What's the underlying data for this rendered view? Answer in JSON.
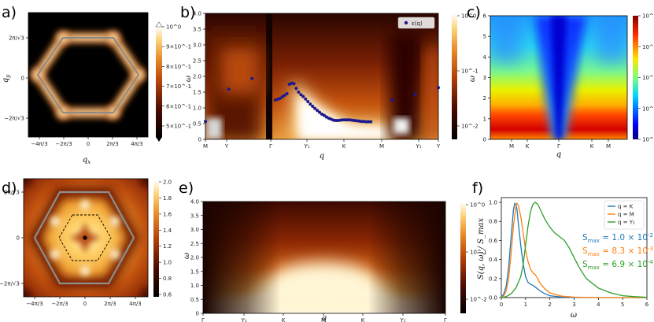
{
  "figure": {
    "panel_labels": [
      "a)",
      "b)",
      "c)",
      "d)",
      "e)",
      "f)"
    ]
  },
  "chart_data": [
    {
      "id": "a",
      "type": "heatmap",
      "description_label": "structure factor on (qx, qy) plane",
      "xlabel": "q_x",
      "ylabel": "q_y",
      "xticks": [
        "−4π/3",
        "−2π/3",
        "0",
        "2π/3",
        "4π/3"
      ],
      "yticks": [
        "2π/√3",
        "0",
        "−2π/√3"
      ],
      "colorbar": {
        "scale": "log",
        "ticks": [
          "10^0",
          "9×10^-1",
          "8×10^-1",
          "7×10^-1",
          "6×10^-1",
          "5×10^-1"
        ],
        "range": [
          0.45,
          1.0
        ],
        "colors": [
          "#000000",
          "#3b0a02",
          "#8a2a06",
          "#d15a12",
          "#f3a53a",
          "#ffe29a",
          "#ffffff"
        ]
      }
    },
    {
      "id": "b",
      "type": "heatmap",
      "xlabel": "q",
      "ylabel": "ω",
      "xticks": [
        "M",
        "Y",
        "Γ",
        "Y₁",
        "K",
        "M",
        "Y₁",
        "Y"
      ],
      "yticks": [
        "0",
        "0.5",
        "1.0",
        "1.5",
        "2.0",
        "2.5",
        "3.0",
        "3.5",
        "4.0"
      ],
      "ylim": [
        0,
        4
      ],
      "legend": "ε(q)",
      "colorbar": {
        "scale": "log",
        "ticks": [
          "10^0",
          "10^-1",
          "10^-2"
        ],
        "range": [
          0.003,
          1
        ]
      },
      "scatter": {
        "name": "ε(q)",
        "x": [
          0.0,
          1.0,
          2.0,
          3.0,
          3.1,
          3.2,
          3.3,
          3.4,
          3.5,
          3.6,
          3.7,
          3.8,
          3.9,
          4.0,
          4.1,
          4.2,
          4.3,
          4.4,
          4.5,
          4.6,
          4.7,
          4.8,
          4.9,
          5.0,
          5.1,
          5.2,
          5.3,
          5.4,
          5.5,
          5.6,
          5.7,
          5.8,
          5.9,
          6.0,
          6.1,
          6.2,
          6.3,
          6.4,
          6.5,
          6.6,
          6.7,
          6.8,
          6.9,
          7.0,
          7.1,
          8.0,
          9.0,
          10.0
        ],
        "y": [
          0.57,
          1.59,
          1.93,
          1.25,
          1.27,
          1.3,
          1.35,
          1.4,
          1.45,
          1.75,
          1.78,
          1.77,
          1.62,
          1.5,
          1.42,
          1.36,
          1.28,
          1.2,
          1.12,
          1.05,
          0.98,
          0.92,
          0.86,
          0.8,
          0.76,
          0.71,
          0.67,
          0.64,
          0.61,
          0.6,
          0.6,
          0.61,
          0.62,
          0.62,
          0.62,
          0.62,
          0.61,
          0.6,
          0.59,
          0.58,
          0.57,
          0.57,
          0.56,
          0.56,
          0.56,
          1.25,
          1.43,
          1.64
        ]
      }
    },
    {
      "id": "c",
      "type": "heatmap",
      "xlabel": "q",
      "ylabel": "ω",
      "xticks": [
        "M",
        "K",
        "Γ",
        "K",
        "M"
      ],
      "yticks": [
        "0",
        "1",
        "2",
        "3",
        "4",
        "5",
        "6"
      ],
      "ylim": [
        0,
        6
      ],
      "colorbar": {
        "scale": "log",
        "ticks": [
          "10^0",
          "10^-1",
          "10^-2",
          "10^-3",
          "10^-4"
        ],
        "range": [
          0.0001,
          1
        ]
      }
    },
    {
      "id": "d",
      "type": "heatmap",
      "xticks": [
        "−4π/3",
        "−2π/3",
        "0",
        "2π/3",
        "4π/3"
      ],
      "yticks": [
        "2π/√3",
        "0",
        "−2π/√3"
      ],
      "colorbar": {
        "scale": "linear",
        "ticks": [
          "2.0",
          "1.8",
          "1.6",
          "1.4",
          "1.2",
          "1.0",
          "0.8",
          "0.6"
        ],
        "range": [
          0.55,
          2.0
        ]
      }
    },
    {
      "id": "e",
      "type": "heatmap",
      "xlabel": "q",
      "ylabel": "ω",
      "xticks": [
        "Γ",
        "Y₁",
        "K",
        "M",
        "K",
        "Y₁",
        "Γ"
      ],
      "yticks": [
        "0",
        "0.5",
        "1.0",
        "1.5",
        "2.0",
        "2.5",
        "3.0",
        "3.5",
        "4.0"
      ],
      "ylim": [
        0,
        4
      ],
      "colorbar": {
        "scale": "log",
        "ticks": [
          "10^0",
          "10^-1",
          "10^-2"
        ],
        "range": [
          0.003,
          1
        ]
      }
    },
    {
      "id": "f",
      "type": "line",
      "xlabel": "ω",
      "ylabel": "S(q, ω) / S_max",
      "xlim": [
        0,
        6
      ],
      "ylim": [
        0,
        1.05
      ],
      "xticks": [
        "0",
        "1",
        "2",
        "3",
        "4",
        "5",
        "6"
      ],
      "yticks": [
        "0.0",
        "0.2",
        "0.4",
        "0.6",
        "0.8",
        "1.0"
      ],
      "series": [
        {
          "name": "q = K",
          "color": "#1f77b4",
          "smax_label": "S",
          "smax_sub": "max",
          "smax_value": " = 1.0 × 10",
          "smax_exp": "-2",
          "x": [
            0,
            0.1,
            0.2,
            0.3,
            0.4,
            0.5,
            0.55,
            0.6,
            0.65,
            0.7,
            0.8,
            0.9,
            1.0,
            1.1,
            1.2,
            1.3,
            1.4,
            1.6,
            1.8,
            2.0,
            2.5,
            3.0,
            4.0,
            6.0
          ],
          "y": [
            0,
            0.04,
            0.12,
            0.32,
            0.62,
            0.92,
            0.99,
            0.98,
            0.92,
            0.78,
            0.55,
            0.35,
            0.22,
            0.16,
            0.14,
            0.13,
            0.11,
            0.07,
            0.04,
            0.02,
            0.005,
            0.002,
            0,
            0
          ]
        },
        {
          "name": "q = M",
          "color": "#ff7f0e",
          "smax_label": "S",
          "smax_sub": "max",
          "smax_value": " = 8.3 × 10",
          "smax_exp": "-3",
          "x": [
            0,
            0.1,
            0.2,
            0.3,
            0.4,
            0.5,
            0.6,
            0.65,
            0.7,
            0.8,
            0.9,
            1.0,
            1.1,
            1.2,
            1.3,
            1.4,
            1.5,
            1.6,
            1.8,
            2.0,
            2.5,
            3.0,
            4.0,
            6.0
          ],
          "y": [
            0,
            0.02,
            0.07,
            0.2,
            0.45,
            0.75,
            0.96,
            0.99,
            0.97,
            0.85,
            0.68,
            0.5,
            0.38,
            0.3,
            0.26,
            0.24,
            0.2,
            0.15,
            0.09,
            0.05,
            0.015,
            0.005,
            0,
            0
          ]
        },
        {
          "name": "q = Y₁",
          "color": "#2ca02c",
          "smax_label": "S",
          "smax_sub": "max",
          "smax_value": " = 6.9 × 10",
          "smax_exp": "-4",
          "x": [
            0,
            0.2,
            0.4,
            0.6,
            0.8,
            0.9,
            1.0,
            1.1,
            1.2,
            1.3,
            1.4,
            1.5,
            1.6,
            1.8,
            2.0,
            2.2,
            2.4,
            2.6,
            2.8,
            3.0,
            3.2,
            3.5,
            4.0,
            4.5,
            5.0,
            5.5,
            6.0
          ],
          "y": [
            0,
            0.01,
            0.04,
            0.1,
            0.22,
            0.35,
            0.55,
            0.75,
            0.9,
            0.98,
            1.0,
            0.98,
            0.93,
            0.82,
            0.74,
            0.68,
            0.64,
            0.6,
            0.52,
            0.42,
            0.32,
            0.2,
            0.1,
            0.05,
            0.02,
            0.01,
            0.003
          ]
        }
      ]
    }
  ]
}
